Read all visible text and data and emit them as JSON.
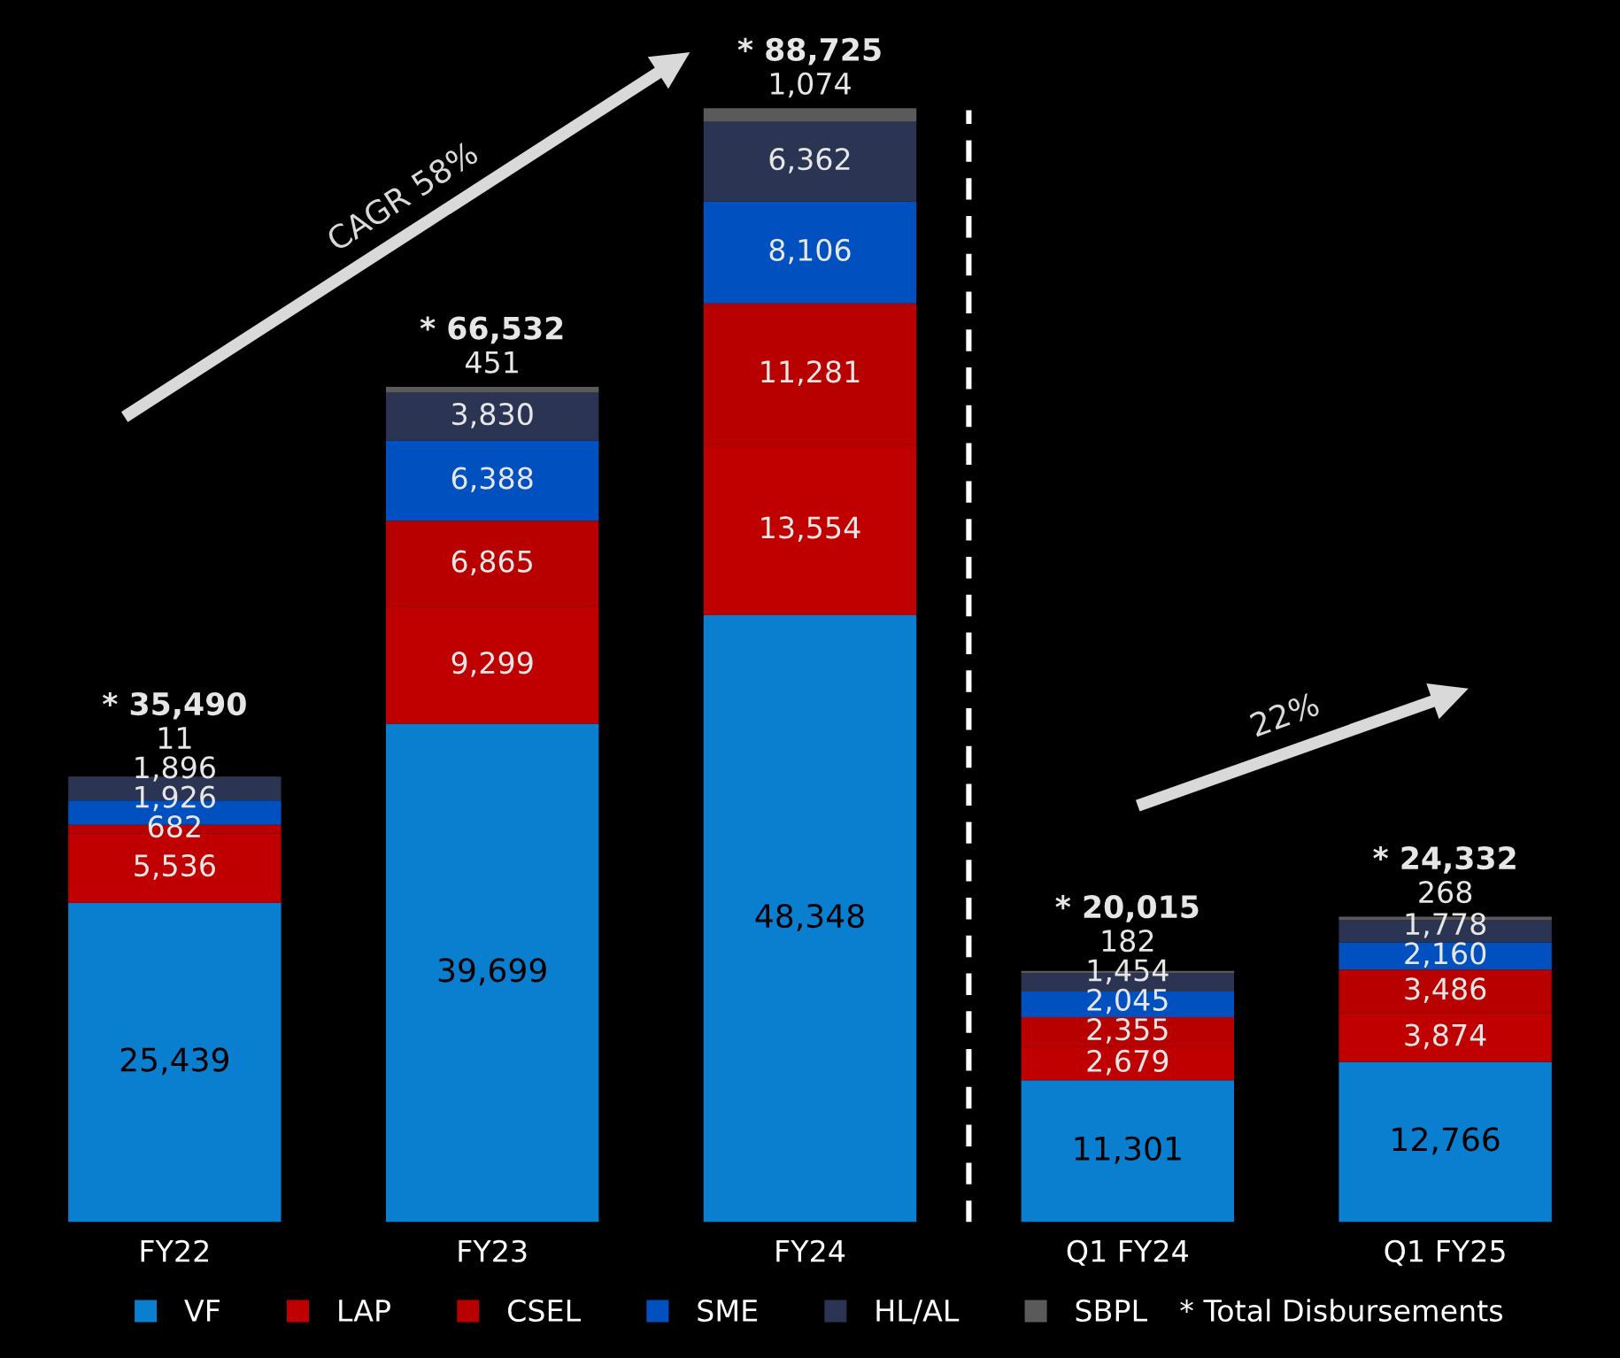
{
  "chart_data": {
    "type": "bar",
    "stacked": true,
    "categories": [
      "FY22",
      "FY23",
      "FY24",
      "Q1 FY24",
      "Q1 FY25"
    ],
    "series": [
      {
        "name": "VF",
        "color": "#0a7fd0",
        "values": [
          25439,
          39699,
          48348,
          11301,
          12766
        ],
        "value_labels": [
          "25,439",
          "39,699",
          "48,348",
          "11,301",
          "12,766"
        ]
      },
      {
        "name": "LAP",
        "color": "#c00000",
        "values": [
          5536,
          9299,
          13554,
          2679,
          3874
        ],
        "value_labels": [
          "5,536",
          "9,299",
          "13,554",
          "2,679",
          "3,874"
        ]
      },
      {
        "name": "CSEL",
        "color": "#b80000",
        "values": [
          682,
          6865,
          11281,
          2355,
          3486
        ],
        "value_labels": [
          "682",
          "6,865",
          "11,281",
          "2,355",
          "3,486"
        ]
      },
      {
        "name": "SME",
        "color": "#0050c0",
        "values": [
          1926,
          6388,
          8106,
          2045,
          2160
        ],
        "value_labels": [
          "1,926",
          "6,388",
          "8,106",
          "2,045",
          "2,160"
        ]
      },
      {
        "name": "HL/AL",
        "color": "#2b3553",
        "values": [
          1896,
          3830,
          6362,
          1454,
          1778
        ],
        "value_labels": [
          "1,896",
          "3,830",
          "6,362",
          "1,454",
          "1,778"
        ]
      },
      {
        "name": "SBPL",
        "color": "#5a5a5a",
        "values": [
          11,
          451,
          1074,
          182,
          268
        ],
        "value_labels": [
          "11",
          "451",
          "1,074",
          "182",
          "268"
        ]
      }
    ],
    "totals": [
      "* 35,490",
      "* 66,532",
      "* 88,725",
      "* 20,015",
      "* 24,332"
    ],
    "annotations": [
      "CAGR 58%",
      "22%",
      "* Total Disbursements"
    ],
    "legend": "bottom",
    "grid": false
  }
}
